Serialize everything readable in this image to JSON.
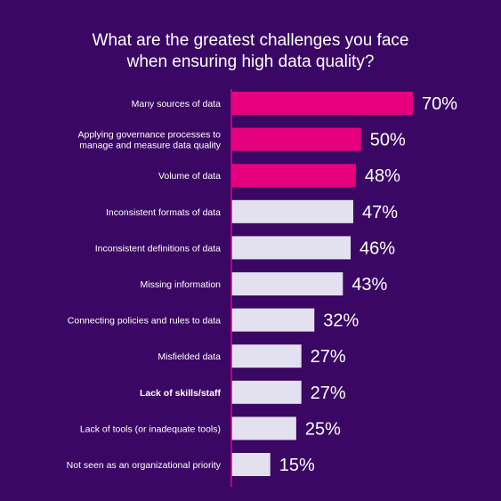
{
  "chart_data": {
    "type": "bar",
    "orientation": "horizontal",
    "title_lines": [
      "What are the greatest challenges you face",
      "when ensuring high data quality?"
    ],
    "categories": [
      [
        "Many sources of data"
      ],
      [
        "Applying governance processes to",
        "manage and measure data quality"
      ],
      [
        "Volume of data"
      ],
      [
        "Inconsistent formats of data"
      ],
      [
        "Inconsistent definitions of data"
      ],
      [
        "Missing information"
      ],
      [
        "Connecting policies and rules to data"
      ],
      [
        "Misfielded data"
      ],
      [
        "Lack of skills/staff"
      ],
      [
        "Lack of tools (or inadequate tools)"
      ],
      [
        "Not seen as an organizational priority"
      ]
    ],
    "values": [
      70,
      50,
      48,
      47,
      46,
      43,
      32,
      27,
      27,
      25,
      15
    ],
    "value_labels": [
      "70%",
      "50%",
      "48%",
      "47%",
      "46%",
      "43%",
      "32%",
      "27%",
      "27%",
      "25%",
      "15%"
    ],
    "highlighted": [
      true,
      true,
      true,
      false,
      false,
      false,
      false,
      false,
      false,
      false,
      false
    ],
    "bold_categories": [
      false,
      false,
      false,
      false,
      false,
      false,
      false,
      false,
      true,
      false,
      false
    ],
    "colors": {
      "background": "#3b0764",
      "highlight_bar": "#e6007e",
      "default_bar": "#e3e1f0",
      "text": "#ffffff",
      "axis": "#e6007e"
    },
    "xlim": [
      0,
      70
    ],
    "grid": false,
    "legend": "none"
  }
}
